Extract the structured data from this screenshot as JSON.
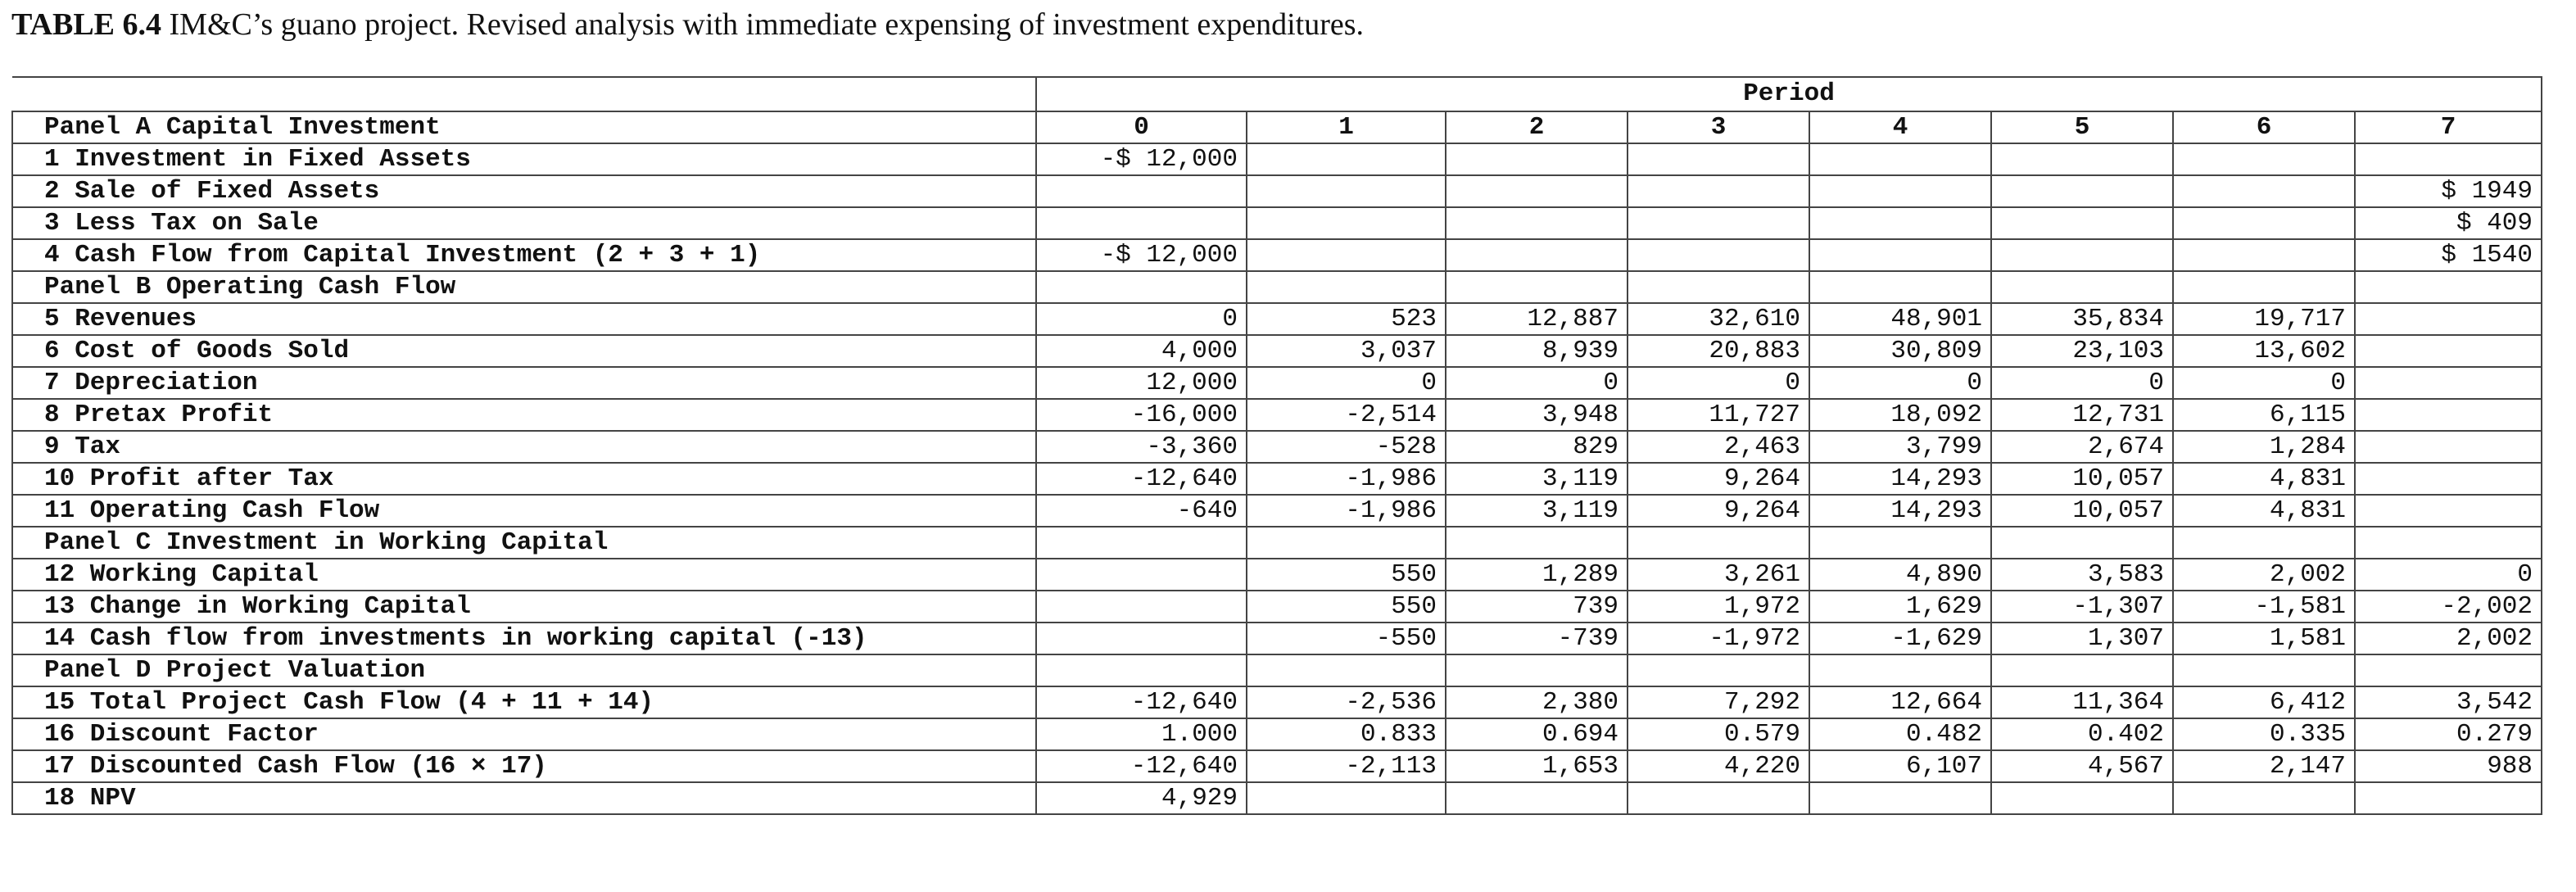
{
  "caption": {
    "label": "TABLE 6.4",
    "text": " IM&C’s guano project. Revised analysis with immediate expensing of investment expenditures."
  },
  "table": {
    "period_label": "Period",
    "header_row_label": "Panel A Capital Investment",
    "periods": [
      "0",
      "1",
      "2",
      "3",
      "4",
      "5",
      "6",
      "7"
    ],
    "rows": [
      {
        "label": "1 Investment in Fixed Assets",
        "cells": [
          "-$ 12,000",
          "",
          "",
          "",
          "",
          "",
          "",
          ""
        ]
      },
      {
        "label": "2 Sale of Fixed Assets",
        "cells": [
          "",
          "",
          "",
          "",
          "",
          "",
          "",
          "$ 1949"
        ]
      },
      {
        "label": "3 Less Tax on Sale",
        "cells": [
          "",
          "",
          "",
          "",
          "",
          "",
          "",
          "$ 409"
        ]
      },
      {
        "label": "4 Cash Flow from Capital Investment (2 + 3 + 1)",
        "cells": [
          "-$ 12,000",
          "",
          "",
          "",
          "",
          "",
          "",
          "$ 1540"
        ]
      },
      {
        "label": "Panel B Operating Cash Flow",
        "cells": [
          "",
          "",
          "",
          "",
          "",
          "",
          "",
          ""
        ]
      },
      {
        "label": "5 Revenues",
        "cells": [
          "0",
          "523",
          "12,887",
          "32,610",
          "48,901",
          "35,834",
          "19,717",
          ""
        ]
      },
      {
        "label": "6 Cost of Goods Sold",
        "cells": [
          "4,000",
          "3,037",
          "8,939",
          "20,883",
          "30,809",
          "23,103",
          "13,602",
          ""
        ]
      },
      {
        "label": "7 Depreciation",
        "cells": [
          "12,000",
          "0",
          "0",
          "0",
          "0",
          "0",
          "0",
          ""
        ]
      },
      {
        "label": "8 Pretax Profit",
        "cells": [
          "-16,000",
          "-2,514",
          "3,948",
          "11,727",
          "18,092",
          "12,731",
          "6,115",
          ""
        ]
      },
      {
        "label": "9 Tax",
        "cells": [
          "-3,360",
          "-528",
          "829",
          "2,463",
          "3,799",
          "2,674",
          "1,284",
          ""
        ]
      },
      {
        "label": "10 Profit after Tax",
        "cells": [
          "-12,640",
          "-1,986",
          "3,119",
          "9,264",
          "14,293",
          "10,057",
          "4,831",
          ""
        ]
      },
      {
        "label": "11 Operating Cash Flow",
        "cells": [
          "-640",
          "-1,986",
          "3,119",
          "9,264",
          "14,293",
          "10,057",
          "4,831",
          ""
        ]
      },
      {
        "label": "Panel C Investment in Working Capital",
        "cells": [
          "",
          "",
          "",
          "",
          "",
          "",
          "",
          ""
        ]
      },
      {
        "label": "12 Working Capital",
        "cells": [
          "",
          "550",
          "1,289",
          "3,261",
          "4,890",
          "3,583",
          "2,002",
          "0"
        ]
      },
      {
        "label": "13 Change in Working Capital",
        "cells": [
          "",
          "550",
          "739",
          "1,972",
          "1,629",
          "-1,307",
          "-1,581",
          "-2,002"
        ]
      },
      {
        "label": "14 Cash flow from investments in working capital (-13)",
        "cells": [
          "",
          "-550",
          "-739",
          "-1,972",
          "-1,629",
          "1,307",
          "1,581",
          "2,002"
        ]
      },
      {
        "label": "Panel D Project Valuation",
        "cells": [
          "",
          "",
          "",
          "",
          "",
          "",
          "",
          ""
        ]
      },
      {
        "label": "15 Total Project Cash Flow (4 + 11 + 14)",
        "cells": [
          "-12,640",
          "-2,536",
          "2,380",
          "7,292",
          "12,664",
          "11,364",
          "6,412",
          "3,542"
        ]
      },
      {
        "label": "16 Discount Factor",
        "cells": [
          "1.000",
          "0.833",
          "0.694",
          "0.579",
          "0.482",
          "0.402",
          "0.335",
          "0.279"
        ]
      },
      {
        "label": "17 Discounted Cash Flow (16 × 17)",
        "cells": [
          "-12,640",
          "-2,113",
          "1,653",
          "4,220",
          "6,107",
          "4,567",
          "2,147",
          "988"
        ]
      },
      {
        "label": "18 NPV",
        "cells": [
          "4,929",
          "",
          "",
          "",
          "",
          "",
          "",
          ""
        ]
      }
    ]
  }
}
